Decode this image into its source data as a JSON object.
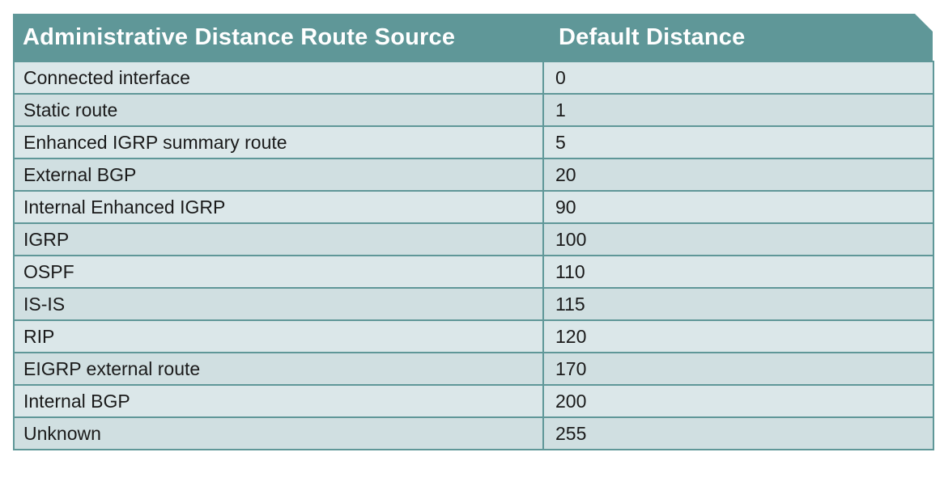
{
  "table": {
    "headers": [
      "Administrative Distance Route Source",
      "Default Distance"
    ],
    "rows": [
      {
        "source": "Connected interface",
        "distance": "0"
      },
      {
        "source": "Static route",
        "distance": "1"
      },
      {
        "source": "Enhanced IGRP summary route",
        "distance": "5"
      },
      {
        "source": "External BGP",
        "distance": "20"
      },
      {
        "source": "Internal Enhanced IGRP",
        "distance": "90"
      },
      {
        "source": "IGRP",
        "distance": "100"
      },
      {
        "source": "OSPF",
        "distance": "110"
      },
      {
        "source": "IS-IS",
        "distance": "115"
      },
      {
        "source": "RIP",
        "distance": "120"
      },
      {
        "source": "EIGRP external route",
        "distance": "170"
      },
      {
        "source": "Internal BGP",
        "distance": "200"
      },
      {
        "source": "Unknown",
        "distance": "255"
      }
    ]
  },
  "colors": {
    "header_bg": "#5f9798",
    "row_odd": "#dbe7e9",
    "row_even": "#d0dfe1",
    "border": "#5f9798"
  }
}
